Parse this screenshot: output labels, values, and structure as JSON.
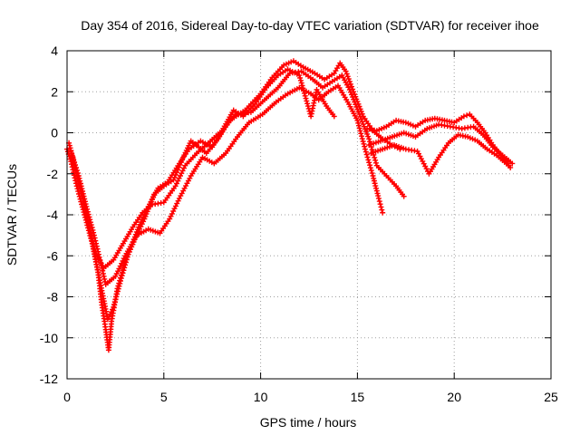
{
  "chart_data": {
    "type": "scatter",
    "marker": "plus",
    "title": "Day 354 of 2016, Sidereal Day-to-day VTEC variation (SDTVAR) for receiver ihoe",
    "xlabel": "GPS time / hours",
    "ylabel": "SDTVAR / TECUs",
    "xlim": [
      0,
      25
    ],
    "ylim": [
      -12,
      4
    ],
    "xticks": [
      0,
      5,
      10,
      15,
      20,
      25
    ],
    "yticks": [
      -12,
      -10,
      -8,
      -6,
      -4,
      -2,
      0,
      2,
      4
    ],
    "xtick_labels": [
      "0",
      "5",
      "10",
      "15",
      "20",
      "25"
    ],
    "ytick_labels": [
      "-12",
      "-10",
      "-8",
      "-6",
      "-4",
      "-2",
      "0",
      "2",
      "4"
    ],
    "grid": true,
    "legend": "none",
    "color": "#ff0000",
    "series": [
      {
        "name": "track-1",
        "points": [
          [
            0.0,
            -0.8
          ],
          [
            0.2,
            -1.4
          ],
          [
            0.5,
            -2.6
          ],
          [
            0.9,
            -4.0
          ],
          [
            1.3,
            -5.4
          ],
          [
            1.6,
            -6.8
          ],
          [
            1.8,
            -8.4
          ],
          [
            2.0,
            -9.6
          ],
          [
            2.15,
            -10.6
          ],
          [
            2.3,
            -9.2
          ],
          [
            2.6,
            -7.6
          ],
          [
            3.0,
            -6.3
          ],
          [
            3.5,
            -5.2
          ],
          [
            4.0,
            -4.2
          ],
          [
            4.5,
            -3.0
          ],
          [
            5.0,
            -2.6
          ],
          [
            5.5,
            -2.3
          ],
          [
            6.0,
            -1.2
          ],
          [
            6.4,
            -0.4
          ],
          [
            6.8,
            -0.7
          ],
          [
            7.2,
            -1.0
          ],
          [
            7.8,
            -0.3
          ],
          [
            8.4,
            0.6
          ],
          [
            9.2,
            1.1
          ],
          [
            10.0,
            1.9
          ],
          [
            10.6,
            2.7
          ],
          [
            11.2,
            3.3
          ],
          [
            11.7,
            3.5
          ],
          [
            12.2,
            3.2
          ],
          [
            12.8,
            2.9
          ],
          [
            13.3,
            2.6
          ],
          [
            13.8,
            2.9
          ],
          [
            14.1,
            3.4
          ],
          [
            14.4,
            3.0
          ],
          [
            14.8,
            2.0
          ],
          [
            15.3,
            0.8
          ],
          [
            15.8,
            0.1
          ],
          [
            16.3,
            -0.3
          ],
          [
            16.8,
            -0.6
          ],
          [
            17.2,
            -0.8
          ]
        ]
      },
      {
        "name": "track-2",
        "points": [
          [
            0.1,
            -0.5
          ],
          [
            0.4,
            -1.6
          ],
          [
            0.8,
            -3.1
          ],
          [
            1.2,
            -4.8
          ],
          [
            1.5,
            -6.3
          ],
          [
            1.8,
            -7.7
          ],
          [
            2.1,
            -9.1
          ],
          [
            2.4,
            -8.5
          ],
          [
            2.8,
            -7.1
          ],
          [
            3.2,
            -5.8
          ],
          [
            3.7,
            -4.6
          ],
          [
            4.2,
            -3.6
          ],
          [
            4.7,
            -2.7
          ],
          [
            5.2,
            -2.4
          ],
          [
            5.8,
            -1.5
          ],
          [
            6.3,
            -0.8
          ],
          [
            6.9,
            -0.4
          ],
          [
            7.5,
            -0.7
          ],
          [
            8.1,
            0.2
          ],
          [
            8.7,
            0.9
          ],
          [
            9.5,
            1.0
          ],
          [
            10.2,
            1.6
          ],
          [
            10.9,
            2.2
          ],
          [
            11.5,
            2.9
          ],
          [
            12.1,
            3.0
          ],
          [
            12.7,
            2.6
          ],
          [
            13.2,
            2.2
          ],
          [
            13.7,
            2.5
          ],
          [
            14.2,
            2.8
          ],
          [
            14.6,
            2.1
          ],
          [
            15.1,
            0.9
          ],
          [
            15.6,
            -0.3
          ],
          [
            16.0,
            -1.6
          ],
          [
            16.5,
            -2.1
          ],
          [
            17.0,
            -2.6
          ],
          [
            17.4,
            -3.1
          ]
        ]
      },
      {
        "name": "track-3",
        "points": [
          [
            0.2,
            -0.9
          ],
          [
            0.6,
            -2.1
          ],
          [
            1.0,
            -3.6
          ],
          [
            1.4,
            -5.0
          ],
          [
            1.7,
            -6.2
          ],
          [
            2.0,
            -7.4
          ],
          [
            2.5,
            -7.0
          ],
          [
            3.0,
            -6.0
          ],
          [
            3.6,
            -5.0
          ],
          [
            4.2,
            -4.7
          ],
          [
            4.8,
            -4.9
          ],
          [
            5.3,
            -4.2
          ],
          [
            5.8,
            -3.2
          ],
          [
            6.4,
            -2.1
          ],
          [
            7.0,
            -1.2
          ],
          [
            7.6,
            -1.5
          ],
          [
            8.2,
            -1.0
          ],
          [
            8.8,
            -0.2
          ],
          [
            9.4,
            0.5
          ],
          [
            10.1,
            0.9
          ],
          [
            10.8,
            1.5
          ],
          [
            11.4,
            1.9
          ],
          [
            12.0,
            2.2
          ],
          [
            12.6,
            1.9
          ],
          [
            13.0,
            1.6
          ],
          [
            13.5,
            2.0
          ],
          [
            14.0,
            2.3
          ],
          [
            14.5,
            1.5
          ],
          [
            15.0,
            0.6
          ],
          [
            15.4,
            -0.8
          ],
          [
            15.8,
            -2.1
          ],
          [
            16.1,
            -3.2
          ],
          [
            16.3,
            -3.9
          ]
        ]
      },
      {
        "name": "track-4",
        "points": [
          [
            0.3,
            -1.2
          ],
          [
            0.7,
            -2.8
          ],
          [
            1.1,
            -4.4
          ],
          [
            1.5,
            -5.9
          ],
          [
            1.9,
            -6.6
          ],
          [
            2.4,
            -6.2
          ],
          [
            2.9,
            -5.4
          ],
          [
            3.4,
            -4.6
          ],
          [
            3.9,
            -3.9
          ],
          [
            4.4,
            -3.5
          ],
          [
            5.0,
            -3.4
          ],
          [
            5.6,
            -2.6
          ],
          [
            6.1,
            -1.6
          ],
          [
            6.7,
            -1.0
          ],
          [
            7.3,
            -0.5
          ],
          [
            8.0,
            0.1
          ],
          [
            8.6,
            1.1
          ],
          [
            9.1,
            0.8
          ],
          [
            9.7,
            1.4
          ],
          [
            10.3,
            2.2
          ],
          [
            10.9,
            2.8
          ],
          [
            11.4,
            3.1
          ],
          [
            12.0,
            2.8
          ],
          [
            12.3,
            1.8
          ],
          [
            12.6,
            0.8
          ],
          [
            12.9,
            2.1
          ],
          [
            13.4,
            1.3
          ],
          [
            13.8,
            0.8
          ]
        ]
      },
      {
        "name": "track-5",
        "points": [
          [
            15.5,
            0.2
          ],
          [
            16.0,
            0.1
          ],
          [
            16.5,
            0.3
          ],
          [
            17.0,
            0.6
          ],
          [
            17.5,
            0.5
          ],
          [
            18.0,
            0.3
          ],
          [
            18.5,
            0.6
          ],
          [
            19.0,
            0.7
          ],
          [
            19.5,
            0.6
          ],
          [
            20.0,
            0.5
          ],
          [
            20.5,
            0.8
          ],
          [
            20.8,
            0.9
          ],
          [
            21.2,
            0.5
          ],
          [
            21.6,
            0.0
          ],
          [
            22.0,
            -0.6
          ],
          [
            22.5,
            -1.2
          ],
          [
            22.9,
            -1.7
          ]
        ]
      },
      {
        "name": "track-6",
        "points": [
          [
            15.6,
            -0.6
          ],
          [
            16.2,
            -0.4
          ],
          [
            16.8,
            -0.2
          ],
          [
            17.4,
            0.0
          ],
          [
            18.0,
            -0.2
          ],
          [
            18.6,
            0.2
          ],
          [
            19.2,
            0.4
          ],
          [
            19.8,
            0.3
          ],
          [
            20.4,
            0.2
          ],
          [
            21.0,
            0.3
          ],
          [
            21.5,
            -0.1
          ],
          [
            22.0,
            -0.7
          ],
          [
            22.5,
            -1.1
          ],
          [
            23.0,
            -1.5
          ]
        ]
      },
      {
        "name": "track-7",
        "points": [
          [
            15.7,
            -1.0
          ],
          [
            16.3,
            -0.8
          ],
          [
            16.9,
            -0.6
          ],
          [
            17.5,
            -0.8
          ],
          [
            18.1,
            -0.9
          ],
          [
            18.7,
            -2.0
          ],
          [
            19.2,
            -1.2
          ],
          [
            19.7,
            -0.5
          ],
          [
            20.2,
            -0.1
          ],
          [
            20.7,
            -0.2
          ],
          [
            21.2,
            -0.4
          ],
          [
            21.7,
            -0.8
          ],
          [
            22.2,
            -1.1
          ],
          [
            22.8,
            -1.6
          ]
        ]
      }
    ]
  }
}
